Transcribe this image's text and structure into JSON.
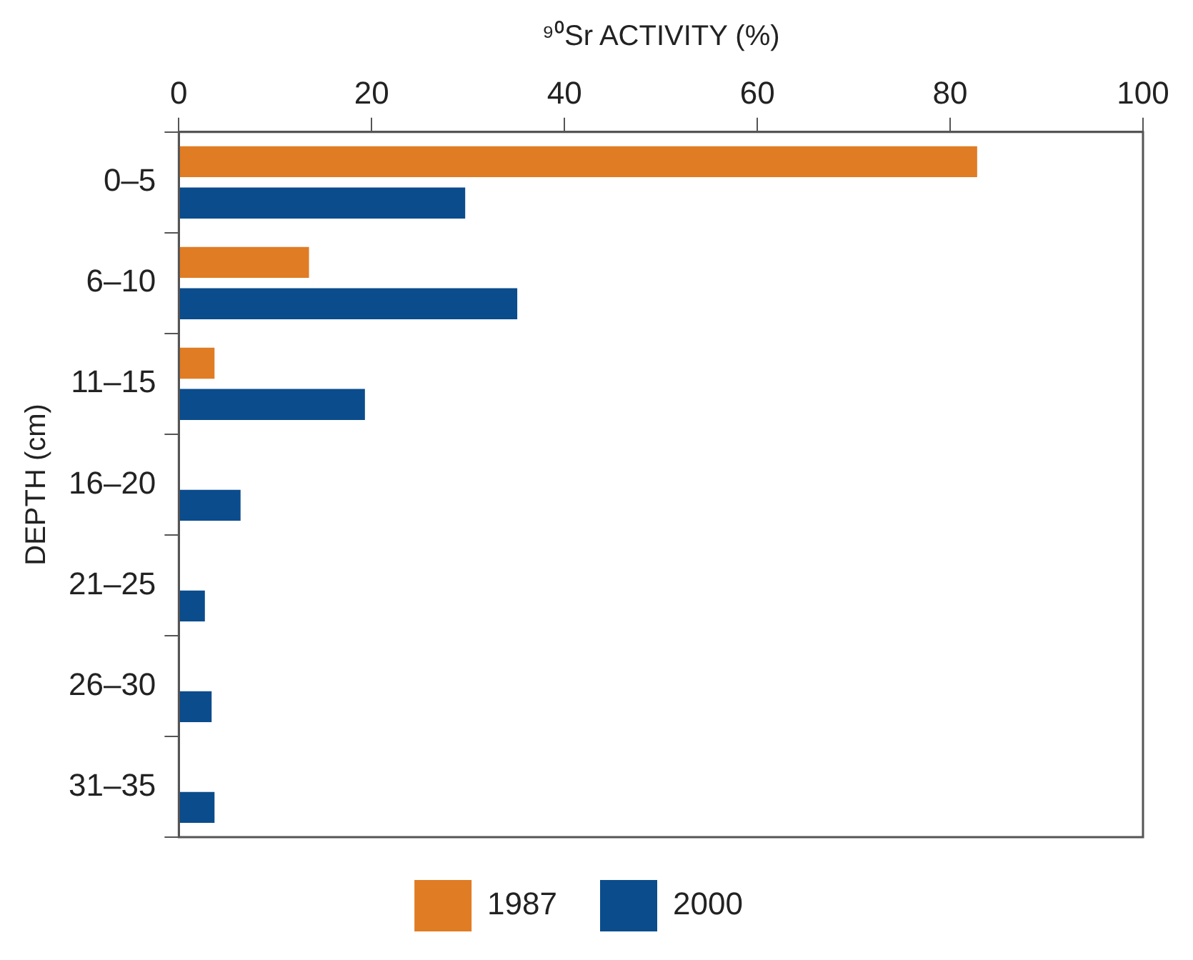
{
  "chart_data": {
    "type": "bar",
    "orientation": "horizontal",
    "xlabel": "⁹⁰Sr ACTIVITY (%)",
    "ylabel": "DEPTH (cm)",
    "categories": [
      "0–5",
      "6–10",
      "11–15",
      "16–20",
      "21–25",
      "26–30",
      "31–35"
    ],
    "series": [
      {
        "name": "1987",
        "color": "#e07c24",
        "values": [
          82.8,
          13.5,
          3.7,
          null,
          null,
          null,
          null
        ]
      },
      {
        "name": "2000",
        "color": "#0b4c8c",
        "values": [
          29.7,
          35.1,
          19.3,
          6.4,
          2.7,
          3.4,
          3.7
        ]
      }
    ],
    "xlim": [
      0,
      100
    ],
    "xticks": [
      0,
      20,
      40,
      60,
      80,
      100
    ],
    "grid": false,
    "legend": "bottom"
  }
}
